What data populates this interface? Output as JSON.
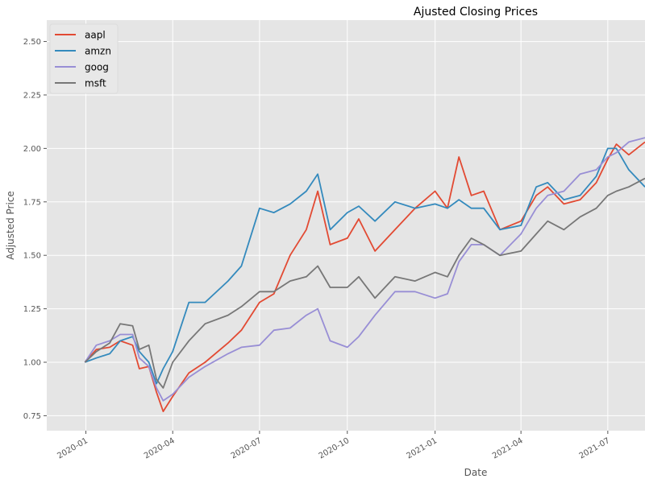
{
  "chart_data": {
    "type": "line",
    "title": "Ajusted Closing Prices",
    "xlabel": "Date",
    "ylabel": "Adjusted Price",
    "xlim": [
      "2019-11-21",
      "2021-08-09"
    ],
    "ylim": [
      0.68,
      2.6
    ],
    "grid": true,
    "legend_position": "top-left",
    "x_ticks": [
      "2020-01",
      "2020-04",
      "2020-07",
      "2020-10",
      "2021-01",
      "2021-04",
      "2021-07"
    ],
    "y_ticks": [
      "0.75",
      "1.00",
      "1.25",
      "1.50",
      "1.75",
      "2.00",
      "2.25",
      "2.50"
    ],
    "x": [
      "2019-12-31",
      "2020-01-12",
      "2020-01-26",
      "2020-02-06",
      "2020-02-19",
      "2020-02-26",
      "2020-03-07",
      "2020-03-15",
      "2020-03-22",
      "2020-04-01",
      "2020-04-18",
      "2020-05-05",
      "2020-05-29",
      "2020-06-12",
      "2020-07-01",
      "2020-07-16",
      "2020-08-02",
      "2020-08-19",
      "2020-08-31",
      "2020-09-13",
      "2020-10-01",
      "2020-10-13",
      "2020-10-30",
      "2020-11-20",
      "2020-12-11",
      "2021-01-01",
      "2021-01-14",
      "2021-01-26",
      "2021-02-08",
      "2021-02-21",
      "2021-03-10",
      "2021-04-01",
      "2021-04-17",
      "2021-04-29",
      "2021-05-16",
      "2021-06-02",
      "2021-06-19",
      "2021-07-01",
      "2021-07-10",
      "2021-07-23",
      "2021-08-09"
    ],
    "series": [
      {
        "name": "aapl",
        "color": "#e24a33",
        "values": [
          1.0,
          1.06,
          1.07,
          1.1,
          1.08,
          0.97,
          0.98,
          0.86,
          0.77,
          0.84,
          0.95,
          1.0,
          1.09,
          1.15,
          1.28,
          1.32,
          1.5,
          1.62,
          1.8,
          1.55,
          1.58,
          1.67,
          1.52,
          1.62,
          1.72,
          1.8,
          1.72,
          1.96,
          1.78,
          1.8,
          1.62,
          1.66,
          1.78,
          1.82,
          1.74,
          1.76,
          1.84,
          1.95,
          2.02,
          1.97,
          2.03
        ]
      },
      {
        "name": "amzn",
        "color": "#348abd",
        "values": [
          1.0,
          1.02,
          1.04,
          1.1,
          1.12,
          1.05,
          1.0,
          0.9,
          0.97,
          1.05,
          1.28,
          1.28,
          1.38,
          1.45,
          1.72,
          1.7,
          1.74,
          1.8,
          1.88,
          1.62,
          1.7,
          1.73,
          1.66,
          1.75,
          1.72,
          1.74,
          1.72,
          1.76,
          1.72,
          1.72,
          1.62,
          1.64,
          1.82,
          1.84,
          1.76,
          1.78,
          1.87,
          2.0,
          2.0,
          1.9,
          1.82
        ]
      },
      {
        "name": "goog",
        "color": "#988ed5",
        "values": [
          1.0,
          1.08,
          1.1,
          1.13,
          1.13,
          1.02,
          0.98,
          0.88,
          0.82,
          0.85,
          0.93,
          0.98,
          1.04,
          1.07,
          1.08,
          1.15,
          1.16,
          1.22,
          1.25,
          1.1,
          1.07,
          1.12,
          1.22,
          1.33,
          1.33,
          1.3,
          1.32,
          1.47,
          1.55,
          1.55,
          1.5,
          1.6,
          1.72,
          1.78,
          1.8,
          1.88,
          1.9,
          1.96,
          1.98,
          2.03,
          2.05
        ]
      },
      {
        "name": "msft",
        "color": "#777777",
        "values": [
          1.0,
          1.05,
          1.09,
          1.18,
          1.17,
          1.06,
          1.08,
          0.92,
          0.88,
          1.0,
          1.1,
          1.18,
          1.22,
          1.26,
          1.33,
          1.33,
          1.38,
          1.4,
          1.45,
          1.35,
          1.35,
          1.4,
          1.3,
          1.4,
          1.38,
          1.42,
          1.4,
          1.5,
          1.58,
          1.55,
          1.5,
          1.52,
          1.6,
          1.66,
          1.62,
          1.68,
          1.72,
          1.78,
          1.8,
          1.82,
          1.86
        ]
      }
    ]
  }
}
